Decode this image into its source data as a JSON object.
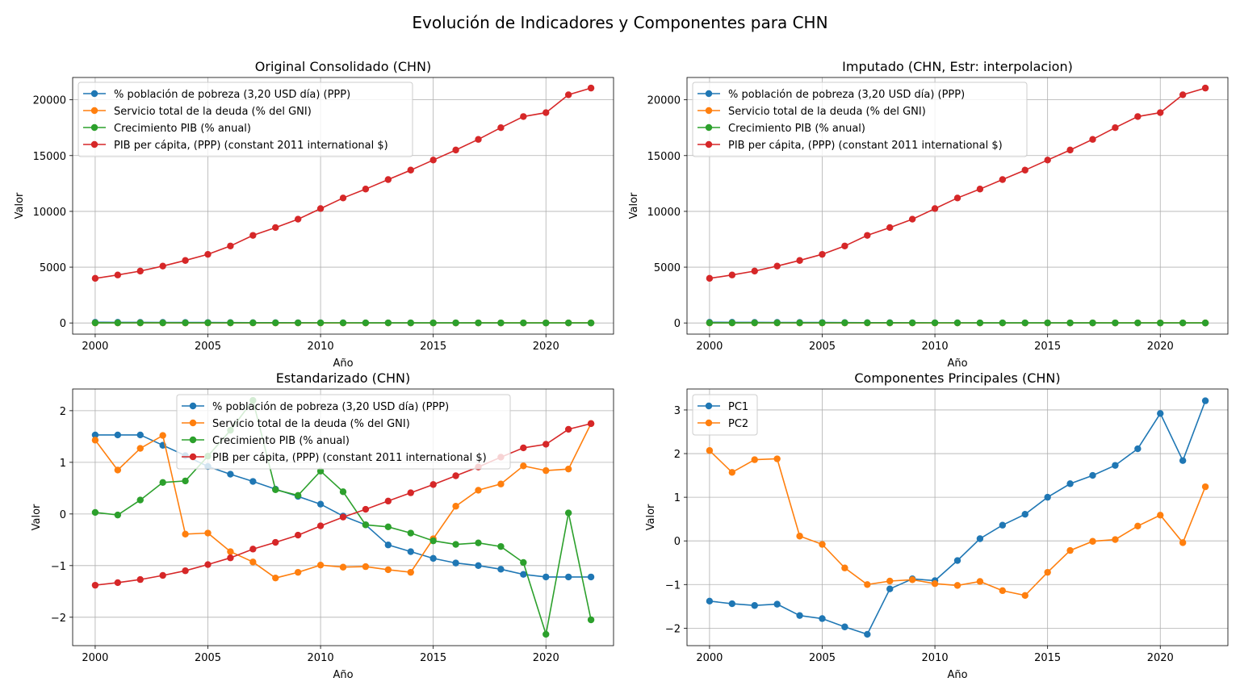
{
  "suptitle": "Evolución de Indicadores y Componentes para CHN",
  "colors": {
    "blue": "#1f77b4",
    "orange": "#ff7f0e",
    "green": "#2ca02c",
    "red": "#d62728"
  },
  "chart_data": [
    {
      "type": "line",
      "title": "Original Consolidado (CHN)",
      "xlabel": "Año",
      "ylabel": "Valor",
      "x": [
        2000,
        2001,
        2002,
        2003,
        2004,
        2005,
        2006,
        2007,
        2008,
        2009,
        2010,
        2011,
        2012,
        2013,
        2014,
        2015,
        2016,
        2017,
        2018,
        2019,
        2020,
        2021,
        2022
      ],
      "xlim": [
        1999,
        2023
      ],
      "ylim": [
        -1000,
        22000
      ],
      "xticks": [
        2000,
        2005,
        2010,
        2015,
        2020
      ],
      "yticks": [
        0,
        5000,
        10000,
        15000,
        20000
      ],
      "grid": true,
      "legend_position": "top-left",
      "series": [
        {
          "name": "% población de pobreza (3,20 USD día) (PPP)",
          "color": "#1f77b4",
          "values": [
            60,
            58,
            55,
            50,
            45,
            38,
            33,
            28,
            24,
            20,
            15,
            12,
            10,
            8,
            5,
            4,
            3,
            2,
            1.5,
            1,
            0.8,
            0.6,
            0.5
          ]
        },
        {
          "name": "Servicio total de la deuda (% del GNI)",
          "color": "#ff7f0e",
          "values": [
            3.5,
            2.5,
            3.0,
            3.5,
            1.5,
            1.5,
            1.2,
            1.0,
            0.8,
            0.9,
            1.0,
            1.0,
            1.0,
            0.9,
            0.8,
            1.2,
            1.5,
            1.8,
            2.0,
            2.2,
            2.1,
            2.2,
            2.8
          ]
        },
        {
          "name": "Crecimiento PIB (% anual)",
          "color": "#2ca02c",
          "values": [
            8.5,
            8.3,
            9.1,
            10.0,
            10.1,
            11.4,
            12.7,
            14.2,
            9.7,
            9.4,
            10.6,
            9.6,
            7.9,
            7.8,
            7.4,
            7.0,
            6.8,
            6.9,
            6.7,
            6.0,
            2.2,
            8.4,
            3.0
          ]
        },
        {
          "name": "PIB per cápita, (PPP) (constant 2011 international $)",
          "color": "#d62728",
          "values": [
            4000,
            4300,
            4650,
            5100,
            5600,
            6150,
            6900,
            7850,
            8550,
            9300,
            10250,
            11200,
            12000,
            12850,
            13700,
            14600,
            15500,
            16450,
            17500,
            18500,
            18850,
            20450,
            21050
          ]
        }
      ]
    },
    {
      "type": "line",
      "title": "Imputado (CHN, Estr: interpolacion)",
      "xlabel": "Año",
      "ylabel": "Valor",
      "x": [
        2000,
        2001,
        2002,
        2003,
        2004,
        2005,
        2006,
        2007,
        2008,
        2009,
        2010,
        2011,
        2012,
        2013,
        2014,
        2015,
        2016,
        2017,
        2018,
        2019,
        2020,
        2021,
        2022
      ],
      "xlim": [
        1999,
        2023
      ],
      "ylim": [
        -1000,
        22000
      ],
      "xticks": [
        2000,
        2005,
        2010,
        2015,
        2020
      ],
      "yticks": [
        0,
        5000,
        10000,
        15000,
        20000
      ],
      "grid": true,
      "legend_position": "top-left",
      "series": [
        {
          "name": "% población de pobreza (3,20 USD día) (PPP)",
          "color": "#1f77b4",
          "values": [
            60,
            58,
            55,
            50,
            45,
            38,
            33,
            28,
            24,
            20,
            15,
            12,
            10,
            8,
            5,
            4,
            3,
            2,
            1.5,
            1,
            0.8,
            0.6,
            0.5
          ]
        },
        {
          "name": "Servicio total de la deuda (% del GNI)",
          "color": "#ff7f0e",
          "values": [
            3.5,
            2.5,
            3.0,
            3.5,
            1.5,
            1.5,
            1.2,
            1.0,
            0.8,
            0.9,
            1.0,
            1.0,
            1.0,
            0.9,
            0.8,
            1.2,
            1.5,
            1.8,
            2.0,
            2.2,
            2.1,
            2.2,
            2.8
          ]
        },
        {
          "name": "Crecimiento PIB (% anual)",
          "color": "#2ca02c",
          "values": [
            8.5,
            8.3,
            9.1,
            10.0,
            10.1,
            11.4,
            12.7,
            14.2,
            9.7,
            9.4,
            10.6,
            9.6,
            7.9,
            7.8,
            7.4,
            7.0,
            6.8,
            6.9,
            6.7,
            6.0,
            2.2,
            8.4,
            3.0
          ]
        },
        {
          "name": "PIB per cápita, (PPP) (constant 2011 international $)",
          "color": "#d62728",
          "values": [
            4000,
            4300,
            4650,
            5100,
            5600,
            6150,
            6900,
            7850,
            8550,
            9300,
            10250,
            11200,
            12000,
            12850,
            13700,
            14600,
            15500,
            16450,
            17500,
            18500,
            18850,
            20450,
            21050
          ]
        }
      ]
    },
    {
      "type": "line",
      "title": "Estandarizado (CHN)",
      "xlabel": "Año",
      "ylabel": "Valor",
      "x": [
        2000,
        2001,
        2002,
        2003,
        2004,
        2005,
        2006,
        2007,
        2008,
        2009,
        2010,
        2011,
        2012,
        2013,
        2014,
        2015,
        2016,
        2017,
        2018,
        2019,
        2020,
        2021,
        2022
      ],
      "xlim": [
        1999,
        2023
      ],
      "ylim": [
        -2.55,
        2.42
      ],
      "xticks": [
        2000,
        2005,
        2010,
        2015,
        2020
      ],
      "yticks": [
        -2,
        -1,
        0,
        1,
        2
      ],
      "grid": true,
      "legend_position": "top-center",
      "series": [
        {
          "name": "% población de pobreza (3,20 USD día) (PPP)",
          "color": "#1f77b4",
          "values": [
            1.53,
            1.53,
            1.53,
            1.33,
            1.13,
            0.92,
            0.77,
            0.63,
            0.48,
            0.34,
            0.19,
            -0.04,
            -0.21,
            -0.6,
            -0.73,
            -0.86,
            -0.95,
            -1.0,
            -1.07,
            -1.17,
            -1.22,
            -1.22,
            -1.22
          ]
        },
        {
          "name": "Servicio total de la deuda (% del GNI)",
          "color": "#ff7f0e",
          "values": [
            1.43,
            0.85,
            1.27,
            1.52,
            -0.39,
            -0.37,
            -0.73,
            -0.93,
            -1.24,
            -1.13,
            -0.99,
            -1.03,
            -1.02,
            -1.08,
            -1.13,
            -0.48,
            0.15,
            0.46,
            0.58,
            0.93,
            0.84,
            0.87,
            1.75
          ]
        },
        {
          "name": "Crecimiento PIB (% anual)",
          "color": "#2ca02c",
          "values": [
            0.03,
            -0.02,
            0.27,
            0.61,
            0.64,
            1.12,
            1.62,
            2.2,
            0.47,
            0.36,
            0.83,
            0.43,
            -0.21,
            -0.25,
            -0.37,
            -0.52,
            -0.59,
            -0.56,
            -0.63,
            -0.94,
            -2.33,
            0.02,
            -2.05
          ]
        },
        {
          "name": "PIB per cápita, (PPP) (constant 2011 international $)",
          "color": "#d62728",
          "values": [
            -1.38,
            -1.33,
            -1.27,
            -1.19,
            -1.1,
            -0.98,
            -0.85,
            -0.68,
            -0.55,
            -0.41,
            -0.23,
            -0.06,
            0.09,
            0.25,
            0.41,
            0.57,
            0.74,
            0.91,
            1.1,
            1.28,
            1.35,
            1.64,
            1.75
          ]
        }
      ]
    },
    {
      "type": "line",
      "title": "Componentes Principales (CHN)",
      "xlabel": "Año",
      "ylabel": "Valor",
      "x": [
        2000,
        2001,
        2002,
        2003,
        2004,
        2005,
        2006,
        2007,
        2008,
        2009,
        2010,
        2011,
        2012,
        2013,
        2014,
        2015,
        2016,
        2017,
        2018,
        2019,
        2020,
        2021,
        2022
      ],
      "xlim": [
        1999,
        2023
      ],
      "ylim": [
        -2.4,
        3.48
      ],
      "xticks": [
        2000,
        2005,
        2010,
        2015,
        2020
      ],
      "yticks": [
        -2,
        -1,
        0,
        1,
        2,
        3
      ],
      "grid": true,
      "legend_position": "top-left",
      "series": [
        {
          "name": "PC1",
          "color": "#1f77b4",
          "values": [
            -1.38,
            -1.44,
            -1.48,
            -1.45,
            -1.71,
            -1.78,
            -1.97,
            -2.14,
            -1.1,
            -0.87,
            -0.91,
            -0.45,
            0.05,
            0.36,
            0.61,
            1.0,
            1.31,
            1.5,
            1.73,
            2.11,
            2.92,
            1.84,
            3.21
          ]
        },
        {
          "name": "PC2",
          "color": "#ff7f0e",
          "values": [
            2.07,
            1.57,
            1.86,
            1.88,
            0.11,
            -0.08,
            -0.62,
            -1.0,
            -0.92,
            -0.89,
            -0.98,
            -1.02,
            -0.93,
            -1.14,
            -1.25,
            -0.72,
            -0.22,
            -0.01,
            0.03,
            0.34,
            0.59,
            -0.04,
            1.24
          ]
        }
      ]
    }
  ]
}
